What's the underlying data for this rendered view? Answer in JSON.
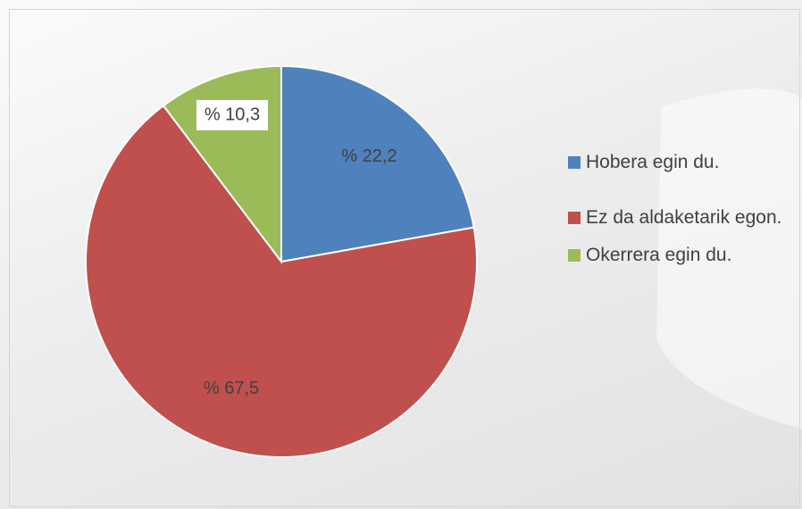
{
  "chart_data": {
    "type": "pie",
    "categories": [
      "Hobera egin du.",
      "Ez da aldaketarik egon.",
      "Okerrera egin du."
    ],
    "values": [
      22.2,
      67.5,
      10.3
    ],
    "value_labels": [
      "% 22,2",
      "% 67,5",
      "% 10,3"
    ],
    "colors": [
      "#4f81bd",
      "#c0504d",
      "#9bbb59"
    ],
    "legend": "right"
  }
}
